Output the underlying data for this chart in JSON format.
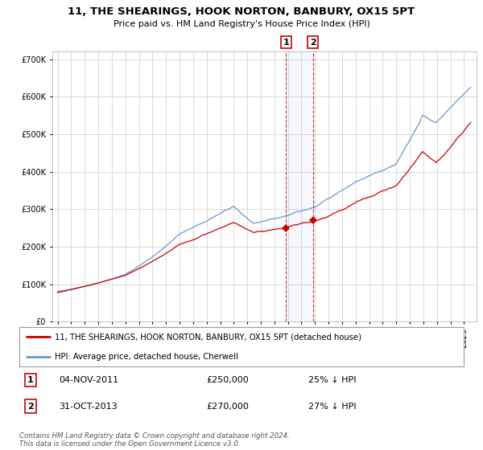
{
  "title": "11, THE SHEARINGS, HOOK NORTON, BANBURY, OX15 5PT",
  "subtitle": "Price paid vs. HM Land Registry's House Price Index (HPI)",
  "ylim": [
    0,
    720000
  ],
  "yticks": [
    0,
    100000,
    200000,
    300000,
    400000,
    500000,
    600000,
    700000
  ],
  "ytick_labels": [
    "£0",
    "£100K",
    "£200K",
    "£300K",
    "£400K",
    "£500K",
    "£600K",
    "£700K"
  ],
  "hpi_color": "#6699cc",
  "price_color": "#cc0000",
  "transaction1_date": 2011.84,
  "transaction1_price": 250000,
  "transaction2_date": 2013.83,
  "transaction2_price": 270000,
  "legend_property": "11, THE SHEARINGS, HOOK NORTON, BANBURY, OX15 5PT (detached house)",
  "legend_hpi": "HPI: Average price, detached house, Cherwell",
  "note1_label": "1",
  "note1_date": "04-NOV-2011",
  "note1_price": "£250,000",
  "note1_pct": "25% ↓ HPI",
  "note2_label": "2",
  "note2_date": "31-OCT-2013",
  "note2_price": "£270,000",
  "note2_pct": "27% ↓ HPI",
  "footer": "Contains HM Land Registry data © Crown copyright and database right 2024.\nThis data is licensed under the Open Government Licence v3.0.",
  "background_color": "#ffffff",
  "grid_color": "#cccccc",
  "xlim_start": 1994.6,
  "xlim_end": 2025.9
}
